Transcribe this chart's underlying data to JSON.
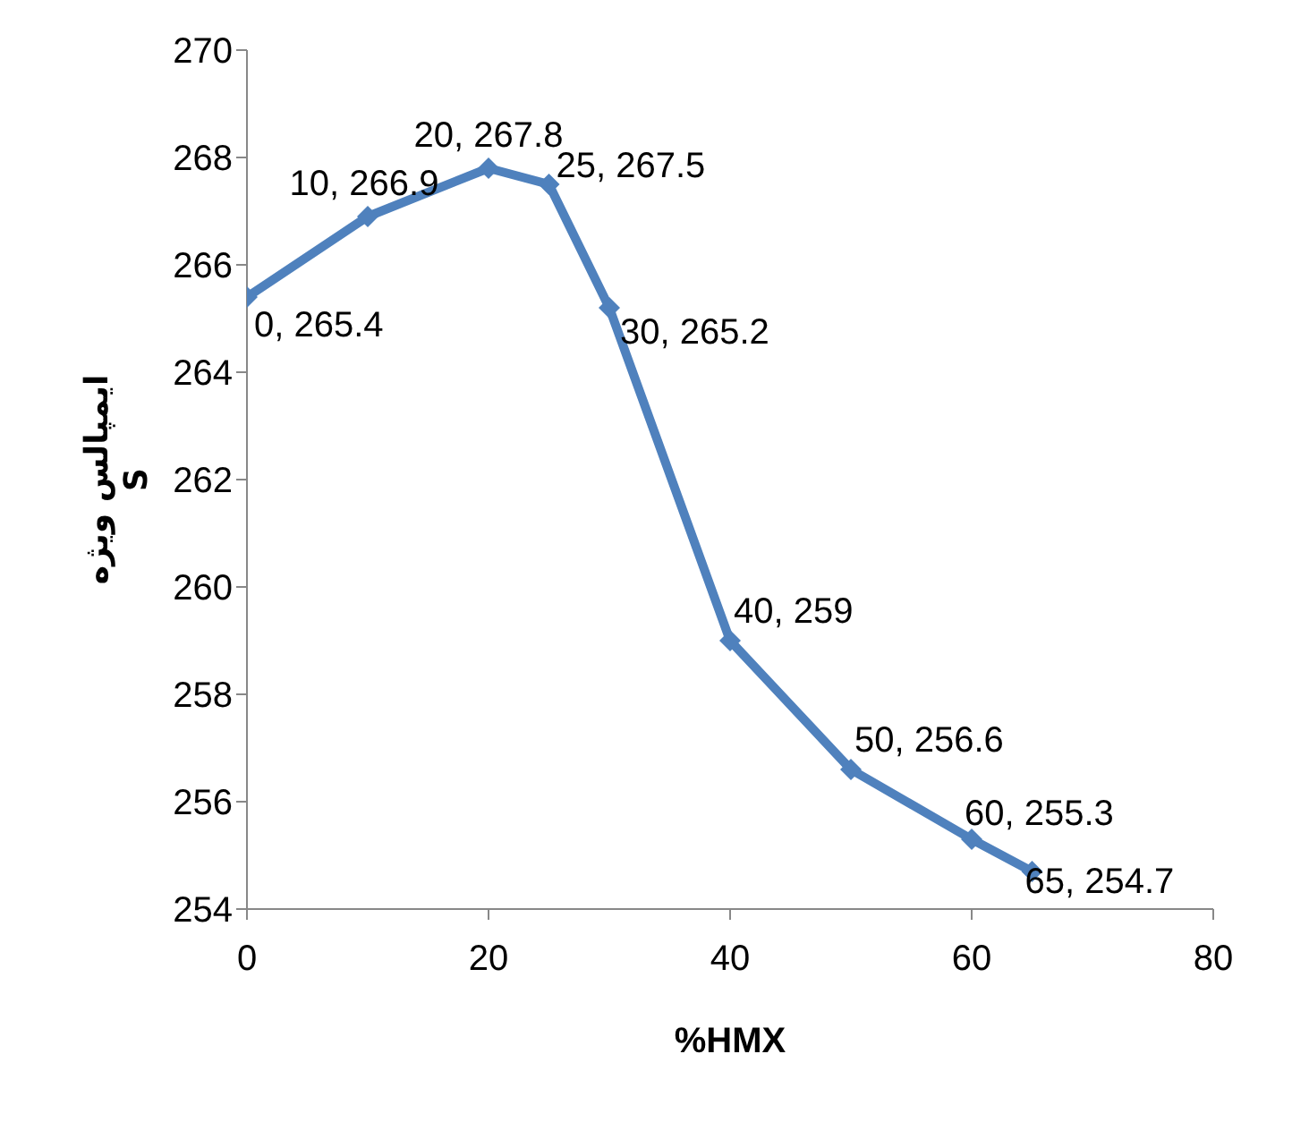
{
  "chart_data": {
    "type": "line",
    "xlabel": "%HMX",
    "ylabel": "ایمپالس ویژه\nS",
    "x": [
      0,
      10,
      20,
      25,
      30,
      40,
      50,
      60,
      65
    ],
    "series": [
      {
        "color": "#4f81bd",
        "values": [
          265.4,
          266.9,
          267.8,
          267.5,
          265.2,
          259,
          256.6,
          255.3,
          254.7
        ],
        "value_labels": [
          "0, 265.4",
          "10, 266.9",
          "20, 267.8",
          "25, 267.5",
          "30, 265.2",
          "40, 259",
          "50, 256.6",
          "60, 255.3",
          "65, 254.7"
        ]
      }
    ],
    "xlim": [
      0,
      80
    ],
    "xticks": [
      0,
      20,
      40,
      60,
      80
    ],
    "ylim": [
      254,
      270
    ],
    "yticks": [
      254,
      256,
      258,
      260,
      262,
      264,
      266,
      268,
      270
    ],
    "grid": false,
    "legend": false,
    "marker": "diamond",
    "line_style": "solid"
  }
}
